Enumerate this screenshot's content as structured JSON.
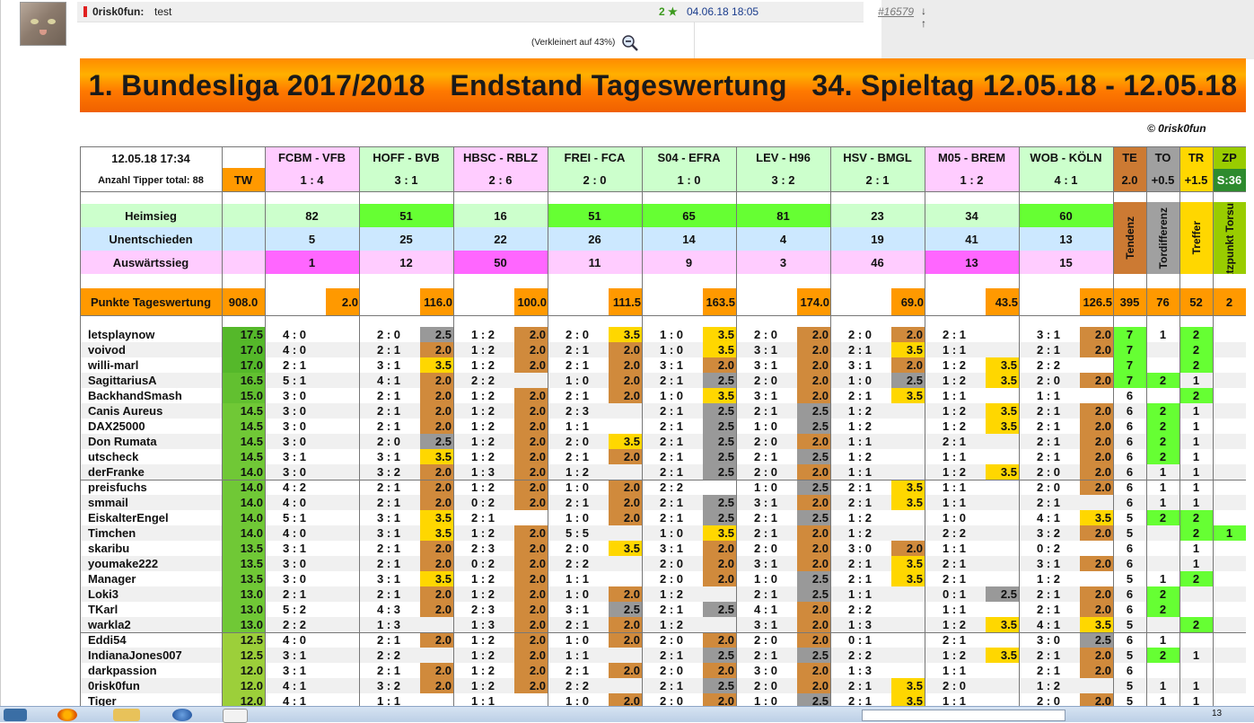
{
  "post": {
    "author": "0risk0fun:",
    "subject": "test",
    "rating": "2 ★",
    "date": "04.06.18 18:05",
    "id": "#16579",
    "arrows": "↓ ↑",
    "zoom_note": "(Verkleinert auf 43%)"
  },
  "banner": "1. Bundesliga 2017/2018   Endstand Tageswertung   34. Spieltag 12.05.18 - 12.05.18",
  "copyright": "© 0risk0fun",
  "info": {
    "datetime": "12.05.18   17:34",
    "tipper": "Anzahl Tipper total:  88",
    "tw": "TW"
  },
  "games": [
    {
      "name": "FCBM - VFB",
      "result": "1 : 4",
      "heim": "82",
      "unent": "5",
      "ausw": "1",
      "tw": "2.0"
    },
    {
      "name": "HOFF - BVB",
      "result": "3 : 1",
      "heim": "51",
      "unent": "25",
      "ausw": "12",
      "tw": "116.0"
    },
    {
      "name": "HBSC - RBLZ",
      "result": "2 : 6",
      "heim": "16",
      "unent": "22",
      "ausw": "50",
      "tw": "100.0"
    },
    {
      "name": "FREI - FCA",
      "result": "2 : 0",
      "heim": "51",
      "unent": "26",
      "ausw": "11",
      "tw": "111.5"
    },
    {
      "name": "S04 - EFRA",
      "result": "1 : 0",
      "heim": "65",
      "unent": "14",
      "ausw": "9",
      "tw": "163.5"
    },
    {
      "name": "LEV - H96",
      "result": "3 : 2",
      "heim": "81",
      "unent": "4",
      "ausw": "3",
      "tw": "174.0"
    },
    {
      "name": "HSV - BMGL",
      "result": "2 : 1",
      "heim": "23",
      "unent": "19",
      "ausw": "46",
      "tw": "69.0"
    },
    {
      "name": "M05 - BREM",
      "result": "1 : 2",
      "heim": "34",
      "unent": "41",
      "ausw": "13",
      "tw": "43.5"
    },
    {
      "name": "WOB - KÖLN",
      "result": "4 : 1",
      "heim": "60",
      "unent": "13",
      "ausw": "15",
      "tw": "126.5"
    }
  ],
  "stats_labels": {
    "heim": "Heimsieg",
    "unent": "Unentschieden",
    "ausw": "Auswärtssieg",
    "punkte": "Punkte Tageswertung",
    "punkte_total": "908.0"
  },
  "bonus": [
    {
      "code": "TE",
      "val": "2.0",
      "label": "Tendenz",
      "total": "395"
    },
    {
      "code": "TO",
      "val": "+0.5",
      "label": "Tordifferenz",
      "total": "76"
    },
    {
      "code": "TR",
      "val": "+1.5",
      "label": "Treffer",
      "total": "52"
    },
    {
      "code": "ZP",
      "val": "S:36",
      "label": "Zusatzpunkt Torsumme",
      "total": "2"
    }
  ],
  "players": [
    [
      "letsplaynow",
      "17.5",
      "4 : 0",
      "",
      "2 : 0",
      "2.5",
      "1 : 2",
      "2.0",
      "2 : 0",
      "3.5",
      "1 : 0",
      "3.5",
      "2 : 0",
      "2.0",
      "2 : 0",
      "2.0",
      "2 : 1",
      "",
      "3 : 1",
      "2.0",
      "7",
      "1",
      "2",
      ""
    ],
    [
      "voivod",
      "17.0",
      "4 : 0",
      "",
      "2 : 1",
      "2.0",
      "1 : 2",
      "2.0",
      "2 : 1",
      "2.0",
      "1 : 0",
      "3.5",
      "3 : 1",
      "2.0",
      "2 : 1",
      "3.5",
      "1 : 1",
      "",
      "2 : 1",
      "2.0",
      "7",
      "",
      "2",
      ""
    ],
    [
      "willi-marl",
      "17.0",
      "2 : 1",
      "",
      "3 : 1",
      "3.5",
      "1 : 2",
      "2.0",
      "2 : 1",
      "2.0",
      "3 : 1",
      "2.0",
      "3 : 1",
      "2.0",
      "3 : 1",
      "2.0",
      "1 : 2",
      "3.5",
      "2 : 2",
      "",
      "7",
      "",
      "2",
      ""
    ],
    [
      "SagittariusA",
      "16.5",
      "5 : 1",
      "",
      "4 : 1",
      "2.0",
      "2 : 2",
      "",
      "1 : 0",
      "2.0",
      "2 : 1",
      "2.5",
      "2 : 0",
      "2.0",
      "1 : 0",
      "2.5",
      "1 : 2",
      "3.5",
      "2 : 0",
      "2.0",
      "7",
      "2",
      "1",
      ""
    ],
    [
      "BackhandSmash",
      "15.0",
      "3 : 0",
      "",
      "2 : 1",
      "2.0",
      "1 : 2",
      "2.0",
      "2 : 1",
      "2.0",
      "1 : 0",
      "3.5",
      "3 : 1",
      "2.0",
      "2 : 1",
      "3.5",
      "1 : 1",
      "",
      "1 : 1",
      "",
      "6",
      "",
      "2",
      ""
    ],
    [
      "Canis Aureus",
      "14.5",
      "3 : 0",
      "",
      "2 : 1",
      "2.0",
      "1 : 2",
      "2.0",
      "2 : 3",
      "",
      "2 : 1",
      "2.5",
      "2 : 1",
      "2.5",
      "1 : 2",
      "",
      "1 : 2",
      "3.5",
      "2 : 1",
      "2.0",
      "6",
      "2",
      "1",
      ""
    ],
    [
      "DAX25000",
      "14.5",
      "3 : 0",
      "",
      "2 : 1",
      "2.0",
      "1 : 2",
      "2.0",
      "1 : 1",
      "",
      "2 : 1",
      "2.5",
      "1 : 0",
      "2.5",
      "1 : 2",
      "",
      "1 : 2",
      "3.5",
      "2 : 1",
      "2.0",
      "6",
      "2",
      "1",
      ""
    ],
    [
      "Don Rumata",
      "14.5",
      "3 : 0",
      "",
      "2 : 0",
      "2.5",
      "1 : 2",
      "2.0",
      "2 : 0",
      "3.5",
      "2 : 1",
      "2.5",
      "2 : 0",
      "2.0",
      "1 : 1",
      "",
      "2 : 1",
      "",
      "2 : 1",
      "2.0",
      "6",
      "2",
      "1",
      ""
    ],
    [
      "utscheck",
      "14.5",
      "3 : 1",
      "",
      "3 : 1",
      "3.5",
      "1 : 2",
      "2.0",
      "2 : 1",
      "2.0",
      "2 : 1",
      "2.5",
      "2 : 1",
      "2.5",
      "1 : 2",
      "",
      "1 : 1",
      "",
      "2 : 1",
      "2.0",
      "6",
      "2",
      "1",
      ""
    ],
    [
      "derFranke",
      "14.0",
      "3 : 0",
      "",
      "3 : 2",
      "2.0",
      "1 : 3",
      "2.0",
      "1 : 2",
      "",
      "2 : 1",
      "2.5",
      "2 : 0",
      "2.0",
      "1 : 1",
      "",
      "1 : 2",
      "3.5",
      "2 : 0",
      "2.0",
      "6",
      "1",
      "1",
      ""
    ],
    [
      "preisfuchs",
      "14.0",
      "4 : 2",
      "",
      "2 : 1",
      "2.0",
      "1 : 2",
      "2.0",
      "1 : 0",
      "2.0",
      "2 : 2",
      "",
      "1 : 0",
      "2.5",
      "2 : 1",
      "3.5",
      "1 : 1",
      "",
      "2 : 0",
      "2.0",
      "6",
      "1",
      "1",
      ""
    ],
    [
      "smmail",
      "14.0",
      "4 : 0",
      "",
      "2 : 1",
      "2.0",
      "0 : 2",
      "2.0",
      "2 : 1",
      "2.0",
      "2 : 1",
      "2.5",
      "3 : 1",
      "2.0",
      "2 : 1",
      "3.5",
      "1 : 1",
      "",
      "2 : 1",
      "",
      "6",
      "1",
      "1",
      ""
    ],
    [
      "EiskalterEngel",
      "14.0",
      "5 : 1",
      "",
      "3 : 1",
      "3.5",
      "2 : 1",
      "",
      "1 : 0",
      "2.0",
      "2 : 1",
      "2.5",
      "2 : 1",
      "2.5",
      "1 : 2",
      "",
      "1 : 0",
      "",
      "4 : 1",
      "3.5",
      "5",
      "2",
      "2",
      ""
    ],
    [
      "Timchen",
      "14.0",
      "4 : 0",
      "",
      "3 : 1",
      "3.5",
      "1 : 2",
      "2.0",
      "5 : 5",
      "",
      "1 : 0",
      "3.5",
      "2 : 1",
      "2.0",
      "1 : 2",
      "",
      "2 : 2",
      "",
      "3 : 2",
      "2.0",
      "5",
      "",
      "2",
      "1"
    ],
    [
      "skaribu",
      "13.5",
      "3 : 1",
      "",
      "2 : 1",
      "2.0",
      "2 : 3",
      "2.0",
      "2 : 0",
      "3.5",
      "3 : 1",
      "2.0",
      "2 : 0",
      "2.0",
      "3 : 0",
      "2.0",
      "1 : 1",
      "",
      "0 : 2",
      "",
      "6",
      "",
      "1",
      ""
    ],
    [
      "youmake222",
      "13.5",
      "3 : 0",
      "",
      "2 : 1",
      "2.0",
      "0 : 2",
      "2.0",
      "2 : 2",
      "",
      "2 : 0",
      "2.0",
      "3 : 1",
      "2.0",
      "2 : 1",
      "3.5",
      "2 : 1",
      "",
      "3 : 1",
      "2.0",
      "6",
      "",
      "1",
      ""
    ],
    [
      "Manager",
      "13.5",
      "3 : 0",
      "",
      "3 : 1",
      "3.5",
      "1 : 2",
      "2.0",
      "1 : 1",
      "",
      "2 : 0",
      "2.0",
      "1 : 0",
      "2.5",
      "2 : 1",
      "3.5",
      "2 : 1",
      "",
      "1 : 2",
      "",
      "5",
      "1",
      "2",
      ""
    ],
    [
      "Loki3",
      "13.0",
      "2 : 1",
      "",
      "2 : 1",
      "2.0",
      "1 : 2",
      "2.0",
      "1 : 0",
      "2.0",
      "1 : 2",
      "",
      "2 : 1",
      "2.5",
      "1 : 1",
      "",
      "0 : 1",
      "2.5",
      "2 : 1",
      "2.0",
      "6",
      "2",
      "",
      ""
    ],
    [
      "TKarl",
      "13.0",
      "5 : 2",
      "",
      "4 : 3",
      "2.0",
      "2 : 3",
      "2.0",
      "3 : 1",
      "2.5",
      "2 : 1",
      "2.5",
      "4 : 1",
      "2.0",
      "2 : 2",
      "",
      "1 : 1",
      "",
      "2 : 1",
      "2.0",
      "6",
      "2",
      "",
      ""
    ],
    [
      "warkla2",
      "13.0",
      "2 : 2",
      "",
      "1 : 3",
      "",
      "1 : 3",
      "2.0",
      "2 : 1",
      "2.0",
      "1 : 2",
      "",
      "3 : 1",
      "2.0",
      "1 : 3",
      "",
      "1 : 2",
      "3.5",
      "4 : 1",
      "3.5",
      "5",
      "",
      "2",
      ""
    ],
    [
      "Eddi54",
      "12.5",
      "4 : 0",
      "",
      "2 : 1",
      "2.0",
      "1 : 2",
      "2.0",
      "1 : 0",
      "2.0",
      "2 : 0",
      "2.0",
      "2 : 0",
      "2.0",
      "0 : 1",
      "",
      "2 : 1",
      "",
      "3 : 0",
      "2.5",
      "6",
      "1",
      "",
      ""
    ],
    [
      "IndianaJones007",
      "12.5",
      "3 : 1",
      "",
      "2 : 2",
      "",
      "1 : 2",
      "2.0",
      "1 : 1",
      "",
      "2 : 1",
      "2.5",
      "2 : 1",
      "2.5",
      "2 : 2",
      "",
      "1 : 2",
      "3.5",
      "2 : 1",
      "2.0",
      "5",
      "2",
      "1",
      ""
    ],
    [
      "darkpassion",
      "12.0",
      "3 : 1",
      "",
      "2 : 1",
      "2.0",
      "1 : 2",
      "2.0",
      "2 : 1",
      "2.0",
      "2 : 0",
      "2.0",
      "3 : 0",
      "2.0",
      "1 : 3",
      "",
      "1 : 1",
      "",
      "2 : 1",
      "2.0",
      "6",
      "",
      "",
      ""
    ],
    [
      "0risk0fun",
      "12.0",
      "4 : 1",
      "",
      "3 : 2",
      "2.0",
      "1 : 2",
      "2.0",
      "2 : 2",
      "",
      "2 : 1",
      "2.5",
      "2 : 0",
      "2.0",
      "2 : 1",
      "3.5",
      "2 : 0",
      "",
      "1 : 2",
      "",
      "5",
      "1",
      "1",
      ""
    ],
    [
      "Tiger",
      "12.0",
      "4 : 1",
      "",
      "1 : 1",
      "",
      "1 : 1",
      "",
      "1 : 0",
      "2.0",
      "2 : 0",
      "2.0",
      "1 : 0",
      "2.5",
      "2 : 1",
      "3.5",
      "1 : 1",
      "",
      "2 : 0",
      "2.0",
      "5",
      "1",
      "1",
      ""
    ]
  ],
  "colors": {
    "banner": "#ff8c00",
    "header_green": "#ccffcc",
    "header_pink": "#ffccff",
    "heim": "#ccffcc",
    "unent": "#cce8ff",
    "ausw": "#ffccff",
    "bright_green": "#66ff33",
    "magenta": "#ff66ff",
    "orange": "#ff9900",
    "score_orange": "#d08a3c",
    "score_gray": "#999999",
    "score_yellow": "#ffd700",
    "te": "#cc7a33",
    "to": "#a0a0a0",
    "tr": "#ffd700",
    "zp": "#99cc00",
    "zp_dark": "#2e8b2e"
  },
  "taskbar": {
    "clock": "13"
  }
}
